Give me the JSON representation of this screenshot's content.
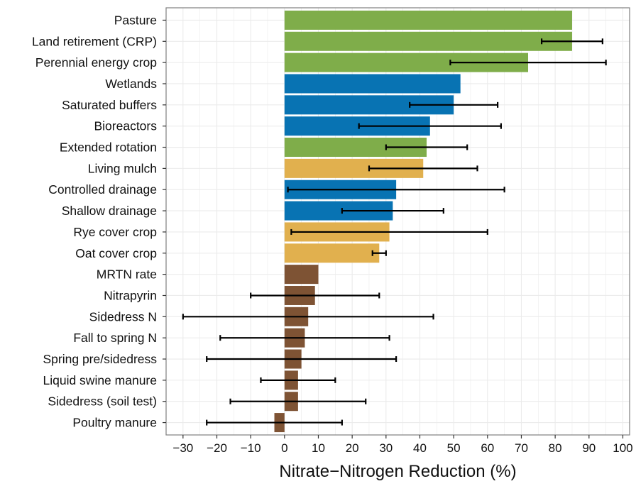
{
  "chart_data": {
    "type": "bar",
    "orientation": "horizontal",
    "title": "",
    "xlabel": "Nitrate−Nitrogen Reduction (%)",
    "ylabel": "",
    "xlim": [
      -35,
      102
    ],
    "xticks": [
      -30,
      -20,
      -10,
      0,
      10,
      20,
      30,
      40,
      50,
      60,
      70,
      80,
      90,
      100
    ],
    "xtick_labels": [
      "−30",
      "−20",
      "−10",
      "0",
      "10",
      "20",
      "30",
      "40",
      "50",
      "60",
      "70",
      "80",
      "90",
      "100"
    ],
    "grid": true,
    "legend": "none",
    "colors": {
      "green": "#7fad4a",
      "blue": "#0873b3",
      "gold": "#e1b04e",
      "brown": "#7e5334",
      "error_bar": "#000000",
      "panel_border": "#7f7f7f",
      "grid": "#ebebeb"
    },
    "categories": [
      "Pasture",
      "Land retirement (CRP)",
      "Perennial energy crop",
      "Wetlands",
      "Saturated buffers",
      "Bioreactors",
      "Extended rotation",
      "Living mulch",
      "Controlled drainage",
      "Shallow drainage",
      "Rye cover crop",
      "Oat cover crop",
      "MRTN rate",
      "Nitrapyrin",
      "Sidedress N",
      "Fall to spring N",
      "Spring pre/sidedress",
      "Liquid swine manure",
      "Sidedress (soil test)",
      "Poultry manure"
    ],
    "values": [
      85,
      85,
      72,
      52,
      50,
      43,
      42,
      41,
      33,
      32,
      31,
      28,
      10,
      9,
      7,
      6,
      5,
      4,
      4,
      -3
    ],
    "error_low": [
      null,
      76,
      49,
      null,
      37,
      22,
      30,
      25,
      1,
      17,
      2,
      26,
      null,
      -10,
      -30,
      -19,
      -23,
      -7,
      -16,
      -23
    ],
    "error_high": [
      null,
      94,
      95,
      null,
      63,
      64,
      54,
      57,
      65,
      47,
      60,
      30,
      null,
      28,
      44,
      31,
      33,
      15,
      24,
      17
    ],
    "bar_colors": [
      "green",
      "green",
      "green",
      "blue",
      "blue",
      "blue",
      "green",
      "gold",
      "blue",
      "blue",
      "gold",
      "gold",
      "brown",
      "brown",
      "brown",
      "brown",
      "brown",
      "brown",
      "brown",
      "brown"
    ]
  }
}
